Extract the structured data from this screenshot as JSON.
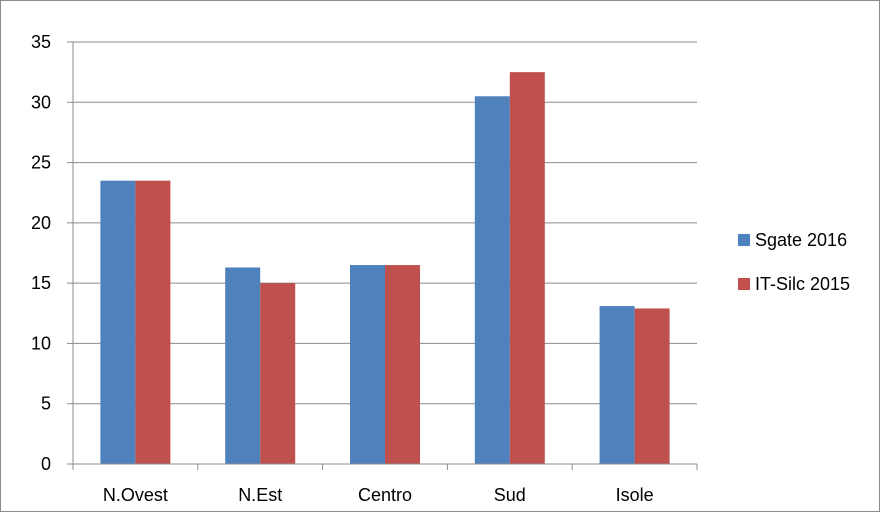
{
  "chart_data": {
    "type": "bar",
    "title": "",
    "xlabel": "",
    "ylabel": "",
    "categories": [
      "N.Ovest",
      "N.Est",
      "Centro",
      "Sud",
      "Isole"
    ],
    "series": [
      {
        "name": "Sgate 2016",
        "color": "#4f81bd",
        "values": [
          23.5,
          16.3,
          16.5,
          30.5,
          13.1
        ]
      },
      {
        "name": "IT-Silc 2015",
        "color": "#c0504d",
        "values": [
          23.5,
          15.0,
          16.5,
          32.5,
          12.9
        ]
      }
    ],
    "ylim": [
      0,
      35
    ],
    "yticks": [
      "0",
      "5",
      "10",
      "15",
      "20",
      "25",
      "30",
      "35"
    ],
    "grid": true,
    "legend_position": "right"
  }
}
